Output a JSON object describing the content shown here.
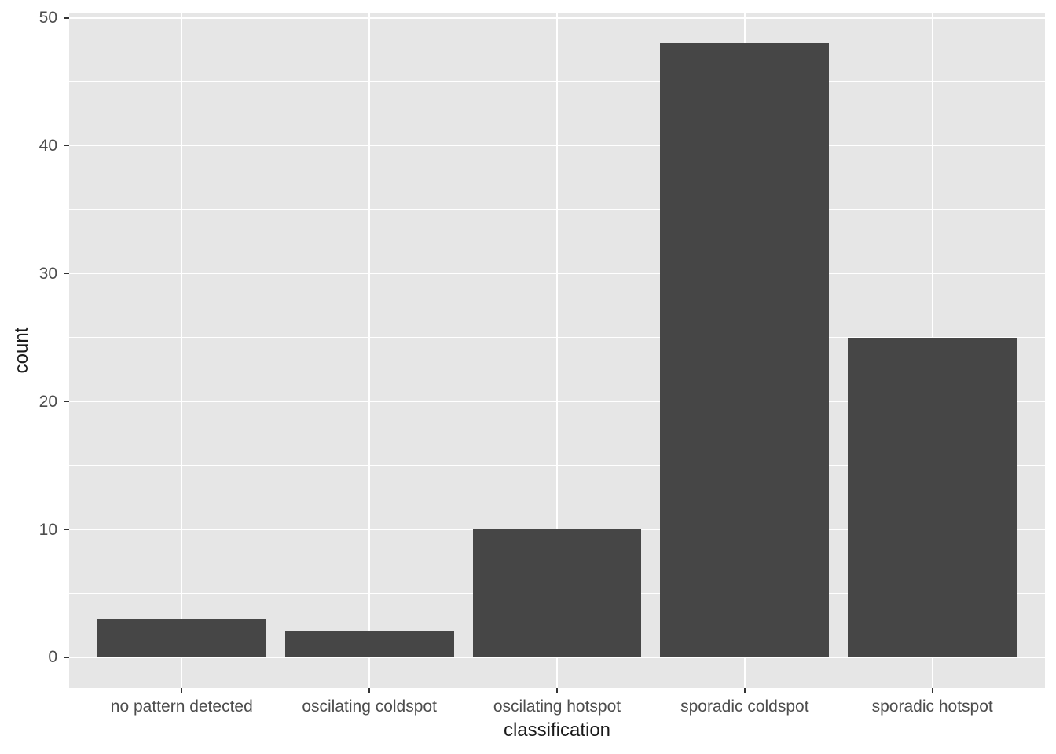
{
  "chart_data": {
    "type": "bar",
    "title": "",
    "xlabel": "classification",
    "ylabel": "count",
    "categories": [
      "no pattern detected",
      "oscilating coldspot",
      "oscilating hotspot",
      "sporadic coldspot",
      "sporadic hotspot"
    ],
    "values": [
      3,
      2,
      10,
      48,
      25
    ],
    "ylim": [
      0,
      50
    ],
    "y_major_ticks": [
      0,
      10,
      20,
      30,
      40,
      50
    ],
    "y_minor_ticks": [
      5,
      15,
      25,
      35,
      45
    ],
    "grid": "on",
    "legend": "none",
    "style": "ggplot2-theme-grey",
    "colors": {
      "bar_fill": "#464646",
      "panel_background": "#E6E6E6",
      "gridline": "#FFFFFF",
      "tick_label": "#4D4D4D",
      "axis_title": "#1A1A1A",
      "tick_mark": "#333333",
      "figure_background": "#FFFFFF"
    }
  }
}
